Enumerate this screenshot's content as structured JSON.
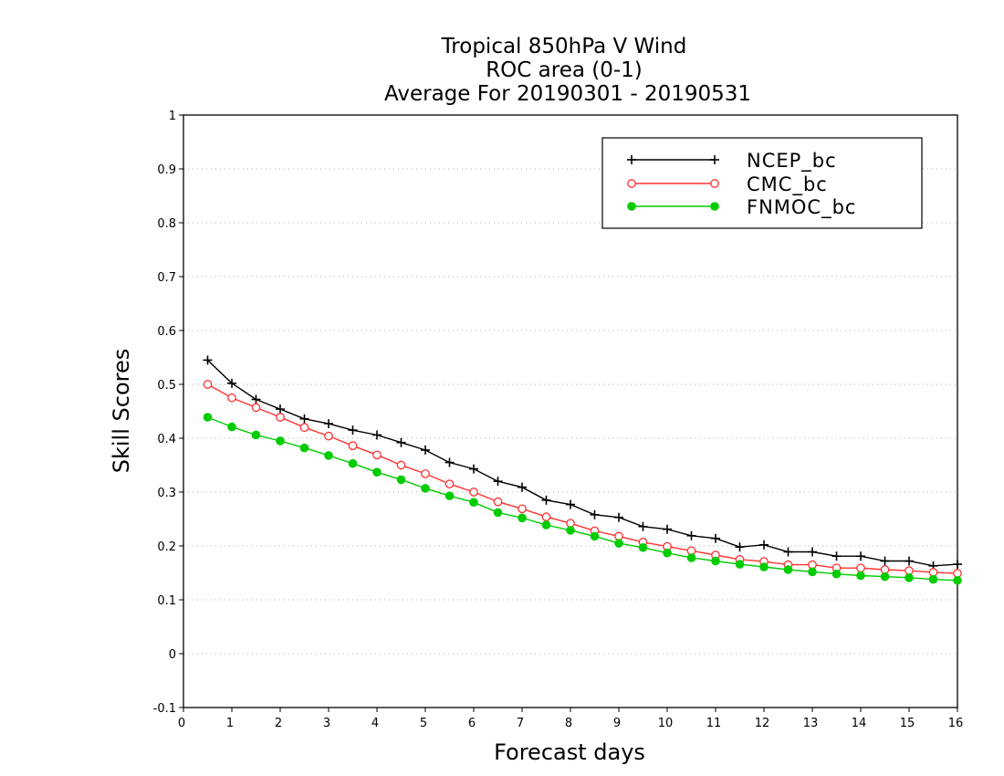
{
  "chart_data": {
    "type": "line",
    "title": [
      "Tropical 850hPa V Wind",
      "ROC area (0-1)",
      "Average For 20190301 - 20190531"
    ],
    "xlabel": "Forecast days",
    "ylabel": "Skill Scores",
    "xlim": [
      0,
      16
    ],
    "ylim": [
      -0.1,
      1
    ],
    "x_ticks": [
      "0",
      "1",
      "2",
      "3",
      "4",
      "5",
      "6",
      "7",
      "8",
      "9",
      "10",
      "11",
      "12",
      "13",
      "14",
      "15",
      "16"
    ],
    "y_ticks": [
      "-0.1",
      "0",
      "0.1",
      "0.2",
      "0.3",
      "0.4",
      "0.5",
      "0.6",
      "0.7",
      "0.8",
      "0.9",
      "1"
    ],
    "grid": true,
    "legend_position": "top-right",
    "x": [
      0.5,
      1,
      1.5,
      2,
      2.5,
      3,
      3.5,
      4,
      4.5,
      5,
      5.5,
      6,
      6.5,
      7,
      7.5,
      8,
      8.5,
      9,
      9.5,
      10,
      10.5,
      11,
      11.5,
      12,
      12.5,
      13,
      13.5,
      14,
      14.5,
      15,
      15.5,
      16
    ],
    "series": [
      {
        "name": "NCEP_bc",
        "color": "#000000",
        "marker": "plus",
        "values": [
          0.545,
          0.502,
          0.472,
          0.454,
          0.436,
          0.427,
          0.415,
          0.406,
          0.392,
          0.378,
          0.355,
          0.343,
          0.32,
          0.309,
          0.285,
          0.277,
          0.258,
          0.253,
          0.236,
          0.231,
          0.219,
          0.214,
          0.198,
          0.202,
          0.189,
          0.189,
          0.181,
          0.181,
          0.172,
          0.172,
          0.163,
          0.166
        ]
      },
      {
        "name": "CMC_bc",
        "color": "#ff3030",
        "marker": "open-circle",
        "values": [
          0.5,
          0.475,
          0.457,
          0.439,
          0.42,
          0.404,
          0.386,
          0.369,
          0.35,
          0.334,
          0.315,
          0.3,
          0.282,
          0.269,
          0.254,
          0.242,
          0.228,
          0.218,
          0.207,
          0.199,
          0.191,
          0.183,
          0.175,
          0.171,
          0.165,
          0.165,
          0.159,
          0.159,
          0.156,
          0.154,
          0.151,
          0.149
        ]
      },
      {
        "name": "FNMOC_bc",
        "color": "#00cc00",
        "marker": "filled-circle",
        "values": [
          0.439,
          0.421,
          0.406,
          0.395,
          0.382,
          0.368,
          0.353,
          0.337,
          0.323,
          0.307,
          0.293,
          0.281,
          0.262,
          0.252,
          0.239,
          0.229,
          0.218,
          0.205,
          0.197,
          0.187,
          0.178,
          0.172,
          0.166,
          0.161,
          0.156,
          0.152,
          0.148,
          0.145,
          0.143,
          0.141,
          0.138,
          0.136
        ]
      }
    ]
  }
}
